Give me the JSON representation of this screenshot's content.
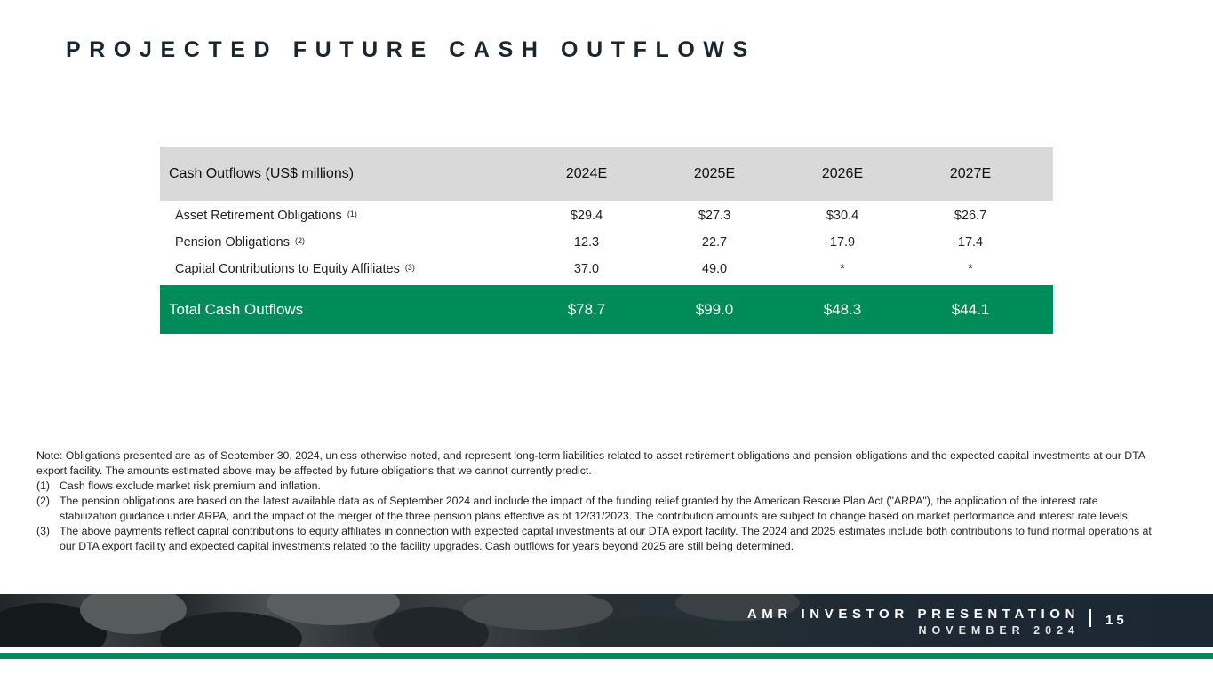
{
  "title": "PROJECTED FUTURE CASH OUTFLOWS",
  "table": {
    "header": [
      "Cash Outflows (US$ millions)",
      "2024E",
      "2025E",
      "2026E",
      "2027E"
    ],
    "rows": [
      {
        "label": "Asset Retirement Obligations",
        "note": "(1)",
        "values": [
          "$29.4",
          "$27.3",
          "$30.4",
          "$26.7"
        ]
      },
      {
        "label": "Pension Obligations",
        "note": "(2)",
        "values": [
          "12.3",
          "22.7",
          "17.9",
          "17.4"
        ]
      },
      {
        "label": "Capital Contributions to Equity Affiliates",
        "note": "(3)",
        "values": [
          "37.0",
          "49.0",
          "*",
          "*"
        ]
      }
    ],
    "total": {
      "label": "Total Cash Outflows",
      "values": [
        "$78.7",
        "$99.0",
        "$48.3",
        "$44.1"
      ]
    }
  },
  "notes": {
    "intro": "Note: Obligations presented are as of September 30, 2024, unless otherwise noted, and represent long-term liabilities related to asset retirement obligations and pension obligations and the expected capital investments at our DTA export facility. The amounts estimated above may be affected by future obligations that we cannot currently predict.",
    "items": [
      {
        "num": "(1)",
        "text": "Cash flows exclude market risk premium and inflation."
      },
      {
        "num": "(2)",
        "text": "The pension obligations are based on the latest available data as of September 2024 and include the impact of the funding relief granted by the American Rescue Plan Act (\"ARPA\"), the application of the interest rate stabilization guidance under ARPA, and the impact of the merger of the three pension plans effective as of 12/31/2023. The contribution amounts are subject to change based on market performance and interest rate levels."
      },
      {
        "num": "(3)",
        "text": "The above payments reflect capital contributions to equity affiliates in connection with expected capital investments at our DTA export facility. The 2024 and 2025 estimates include both contributions to fund normal operations at our DTA export facility and expected capital investments related to the facility upgrades. Cash outflows for years beyond 2025 are still being determined."
      }
    ]
  },
  "footer": {
    "presentation": "AMR INVESTOR PRESENTATION",
    "date": "NOVEMBER 2024",
    "page": "15"
  },
  "colors": {
    "accent_green": "#008c5a",
    "header_gray": "#d9d9d9",
    "title_navy": "#1c2630"
  }
}
